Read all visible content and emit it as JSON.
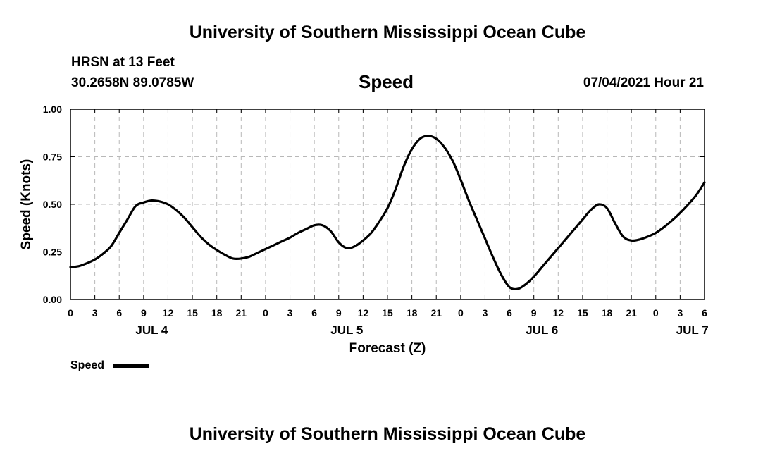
{
  "header": {
    "title": "University of Southern Mississippi Ocean Cube",
    "station": "HRSN at 13 Feet",
    "coordinates": "30.2658N  89.0785W",
    "plot_title": "Speed",
    "timestamp": "07/04/2021 Hour 21"
  },
  "footer": {
    "title": "University of Southern Mississippi Ocean Cube"
  },
  "legend": {
    "label": "Speed"
  },
  "chart_data": {
    "type": "line",
    "title": "Speed",
    "xlabel": "Forecast (Z)",
    "ylabel": "Speed (Knots)",
    "xlim": [
      0,
      78
    ],
    "ylim": [
      0,
      1.0
    ],
    "grid": true,
    "legend_position": "bottom-left",
    "y_ticks": [
      "0.00",
      "0.25",
      "0.50",
      "0.75",
      "1.00"
    ],
    "y_tick_values": [
      0,
      0.25,
      0.5,
      0.75,
      1.0
    ],
    "x_tick_labels": [
      "0",
      "3",
      "6",
      "9",
      "12",
      "15",
      "18",
      "21",
      "0",
      "3",
      "6",
      "9",
      "12",
      "15",
      "18",
      "21",
      "0",
      "3",
      "6",
      "9",
      "12",
      "15",
      "18",
      "21",
      "0",
      "3",
      "6"
    ],
    "day_labels": [
      {
        "label": "JUL 4",
        "x": 10
      },
      {
        "label": "JUL 5",
        "x": 34
      },
      {
        "label": "JUL 6",
        "x": 58
      },
      {
        "label": "JUL 7",
        "x": 76.5
      }
    ],
    "series": [
      {
        "name": "Speed",
        "color": "#000000",
        "x": [
          0,
          1,
          2,
          3,
          4,
          5,
          6,
          7,
          8,
          9,
          10,
          11,
          12,
          13,
          14,
          15,
          16,
          17,
          18,
          19,
          20,
          21,
          22,
          23,
          24,
          25,
          26,
          27,
          28,
          29,
          30,
          31,
          32,
          33,
          34,
          35,
          36,
          37,
          38,
          39,
          40,
          41,
          42,
          43,
          44,
          45,
          46,
          47,
          48,
          49,
          50,
          51,
          52,
          53,
          54,
          55,
          56,
          57,
          58,
          59,
          60,
          61,
          62,
          63,
          64,
          65,
          66,
          67,
          68,
          69,
          70,
          71,
          72,
          73,
          74,
          75,
          76,
          77,
          78
        ],
        "y": [
          0.17,
          0.175,
          0.19,
          0.21,
          0.24,
          0.28,
          0.35,
          0.42,
          0.49,
          0.51,
          0.52,
          0.515,
          0.5,
          0.47,
          0.43,
          0.38,
          0.33,
          0.29,
          0.26,
          0.235,
          0.215,
          0.215,
          0.225,
          0.245,
          0.265,
          0.285,
          0.305,
          0.325,
          0.35,
          0.37,
          0.39,
          0.39,
          0.36,
          0.3,
          0.27,
          0.28,
          0.31,
          0.35,
          0.41,
          0.48,
          0.58,
          0.7,
          0.79,
          0.845,
          0.86,
          0.845,
          0.8,
          0.73,
          0.63,
          0.52,
          0.42,
          0.32,
          0.22,
          0.13,
          0.065,
          0.055,
          0.08,
          0.12,
          0.17,
          0.22,
          0.27,
          0.32,
          0.37,
          0.42,
          0.47,
          0.5,
          0.48,
          0.4,
          0.33,
          0.31,
          0.315,
          0.33,
          0.35,
          0.38,
          0.415,
          0.455,
          0.5,
          0.55,
          0.615
        ]
      }
    ]
  }
}
